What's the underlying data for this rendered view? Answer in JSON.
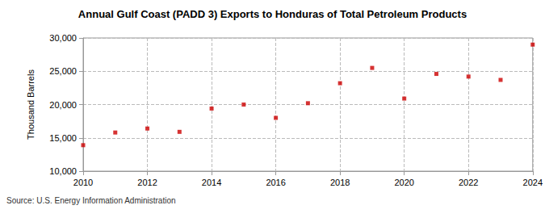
{
  "chart_data": {
    "type": "scatter",
    "title": "Annual Gulf Coast (PADD 3) Exports to Honduras of Total Petroleum Products",
    "y_label": "Thousand Barrels",
    "source": "Source: U.S. Energy Information Administration",
    "x": [
      2010,
      2011,
      2012,
      2013,
      2014,
      2015,
      2016,
      2017,
      2018,
      2019,
      2020,
      2021,
      2022,
      2023,
      2024
    ],
    "values": [
      13900,
      15800,
      16400,
      15900,
      19400,
      20000,
      18000,
      20200,
      23200,
      25500,
      20900,
      24600,
      24200,
      23700,
      29000
    ],
    "color": "#cc0000",
    "marker": "square",
    "xlim": [
      2010,
      2024
    ],
    "xticks": [
      2010,
      2012,
      2014,
      2016,
      2018,
      2020,
      2022,
      2024
    ],
    "ylim": [
      10000,
      30000
    ],
    "yticks": [
      {
        "value": 10000,
        "label": "10,000"
      },
      {
        "value": 15000,
        "label": "15,000"
      },
      {
        "value": 20000,
        "label": "20,000"
      },
      {
        "value": 25000,
        "label": "25,000"
      },
      {
        "value": 30000,
        "label": "30,000"
      }
    ],
    "grid": true
  }
}
